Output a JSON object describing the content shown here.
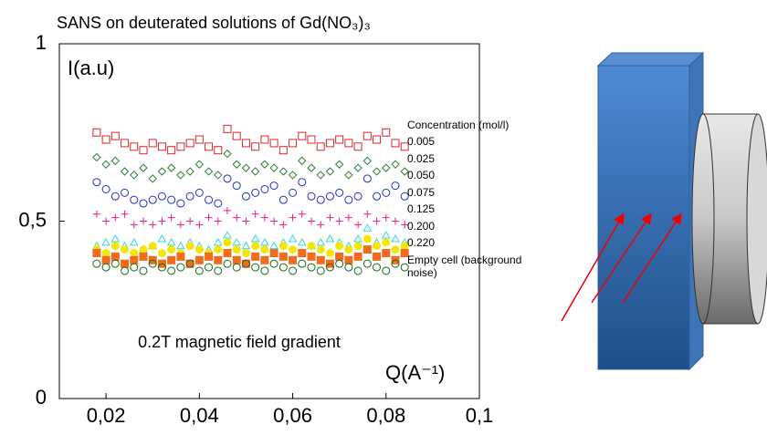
{
  "chart_data": {
    "type": "scatter",
    "title": "SANS on deuterated solutions of Gd(NO₃)₃",
    "y_label": "I(a.u)",
    "x_label": "Q(A⁻¹)",
    "annotation": "0.2T magnetic field gradient",
    "legend_title": "Concentration (mol/l)",
    "xlim": [
      0.01,
      0.1
    ],
    "ylim": [
      0,
      1
    ],
    "xticks": [
      {
        "value": 0.02,
        "label": "0,02"
      },
      {
        "value": 0.04,
        "label": "0,04"
      },
      {
        "value": 0.06,
        "label": "0,06"
      },
      {
        "value": 0.08,
        "label": "0,08"
      },
      {
        "value": 0.1,
        "label": "0,1"
      }
    ],
    "yticks": [
      0,
      {
        "value": 0.5,
        "label": "0,5"
      },
      1
    ],
    "x": [
      0.018,
      0.02,
      0.022,
      0.024,
      0.026,
      0.028,
      0.03,
      0.032,
      0.034,
      0.036,
      0.038,
      0.04,
      0.042,
      0.044,
      0.046,
      0.048,
      0.05,
      0.052,
      0.054,
      0.056,
      0.058,
      0.06,
      0.062,
      0.064,
      0.066,
      0.068,
      0.07,
      0.072,
      0.074,
      0.076,
      0.078,
      0.08,
      0.082,
      0.084
    ],
    "series": [
      {
        "name": "0.005",
        "color": "#d62728",
        "marker": "square",
        "filled": false,
        "values": [
          0.75,
          0.73,
          0.74,
          0.72,
          0.71,
          0.7,
          0.72,
          0.71,
          0.7,
          0.71,
          0.72,
          0.73,
          0.71,
          0.7,
          0.76,
          0.74,
          0.72,
          0.71,
          0.73,
          0.72,
          0.7,
          0.72,
          0.74,
          0.73,
          0.71,
          0.72,
          0.73,
          0.72,
          0.71,
          0.74,
          0.73,
          0.75,
          0.72,
          0.71
        ]
      },
      {
        "name": "0.025",
        "color": "#2e7d32",
        "marker": "diamond",
        "filled": false,
        "values": [
          0.68,
          0.66,
          0.67,
          0.64,
          0.63,
          0.65,
          0.62,
          0.64,
          0.65,
          0.63,
          0.64,
          0.66,
          0.64,
          0.63,
          0.69,
          0.66,
          0.65,
          0.64,
          0.66,
          0.65,
          0.64,
          0.63,
          0.67,
          0.65,
          0.63,
          0.64,
          0.66,
          0.63,
          0.65,
          0.67,
          0.64,
          0.65,
          0.66,
          0.64
        ]
      },
      {
        "name": "0.050",
        "color": "#1f2fcc",
        "marker": "circle",
        "filled": false,
        "values": [
          0.61,
          0.59,
          0.57,
          0.58,
          0.56,
          0.55,
          0.56,
          0.57,
          0.56,
          0.55,
          0.57,
          0.58,
          0.56,
          0.55,
          0.62,
          0.6,
          0.57,
          0.58,
          0.59,
          0.6,
          0.56,
          0.58,
          0.61,
          0.57,
          0.56,
          0.57,
          0.58,
          0.56,
          0.57,
          0.62,
          0.57,
          0.58,
          0.6,
          0.57
        ]
      },
      {
        "name": "0.075",
        "color": "#e0208c",
        "marker": "plus",
        "filled": false,
        "values": [
          0.52,
          0.5,
          0.51,
          0.52,
          0.49,
          0.5,
          0.49,
          0.5,
          0.51,
          0.49,
          0.5,
          0.49,
          0.51,
          0.5,
          0.53,
          0.51,
          0.5,
          0.52,
          0.51,
          0.5,
          0.49,
          0.51,
          0.52,
          0.5,
          0.49,
          0.51,
          0.5,
          0.51,
          0.49,
          0.52,
          0.5,
          0.51,
          0.5,
          0.49
        ]
      },
      {
        "name": "0.125",
        "color": "#33d6e6",
        "marker": "triangle",
        "filled": false,
        "values": [
          0.43,
          0.44,
          0.45,
          0.43,
          0.44,
          0.42,
          0.43,
          0.45,
          0.44,
          0.43,
          0.44,
          0.43,
          0.42,
          0.44,
          0.46,
          0.44,
          0.43,
          0.45,
          0.44,
          0.43,
          0.44,
          0.45,
          0.44,
          0.43,
          0.44,
          0.45,
          0.44,
          0.43,
          0.45,
          0.48,
          0.44,
          0.46,
          0.45,
          0.44
        ]
      },
      {
        "name": "0.200",
        "color": "#f5e60a",
        "marker": "circle",
        "filled": true,
        "values": [
          0.42,
          0.41,
          0.43,
          0.42,
          0.41,
          0.42,
          0.43,
          0.41,
          0.42,
          0.41,
          0.43,
          0.42,
          0.41,
          0.42,
          0.44,
          0.42,
          0.41,
          0.43,
          0.42,
          0.41,
          0.43,
          0.42,
          0.41,
          0.43,
          0.42,
          0.41,
          0.43,
          0.42,
          0.43,
          0.45,
          0.43,
          0.44,
          0.42,
          0.43
        ]
      },
      {
        "name": "0.220",
        "color": "#f26b1d",
        "marker": "square",
        "filled": true,
        "values": [
          0.41,
          0.39,
          0.4,
          0.38,
          0.39,
          0.4,
          0.39,
          0.38,
          0.39,
          0.4,
          0.38,
          0.39,
          0.4,
          0.39,
          0.41,
          0.39,
          0.38,
          0.4,
          0.39,
          0.41,
          0.4,
          0.39,
          0.41,
          0.4,
          0.39,
          0.38,
          0.4,
          0.39,
          0.4,
          0.42,
          0.4,
          0.41,
          0.39,
          0.41
        ]
      },
      {
        "name": "Empty cell (background noise)",
        "color": "#1b6b1b",
        "marker": "circle",
        "filled": false,
        "values": [
          0.38,
          0.37,
          0.38,
          0.36,
          0.37,
          0.36,
          0.38,
          0.37,
          0.36,
          0.37,
          0.38,
          0.36,
          0.37,
          0.36,
          0.38,
          0.37,
          0.38,
          0.37,
          0.36,
          0.38,
          0.37,
          0.36,
          0.38,
          0.37,
          0.36,
          0.37,
          0.38,
          0.37,
          0.36,
          0.38,
          0.37,
          0.36,
          0.38,
          0.37
        ]
      }
    ]
  }
}
